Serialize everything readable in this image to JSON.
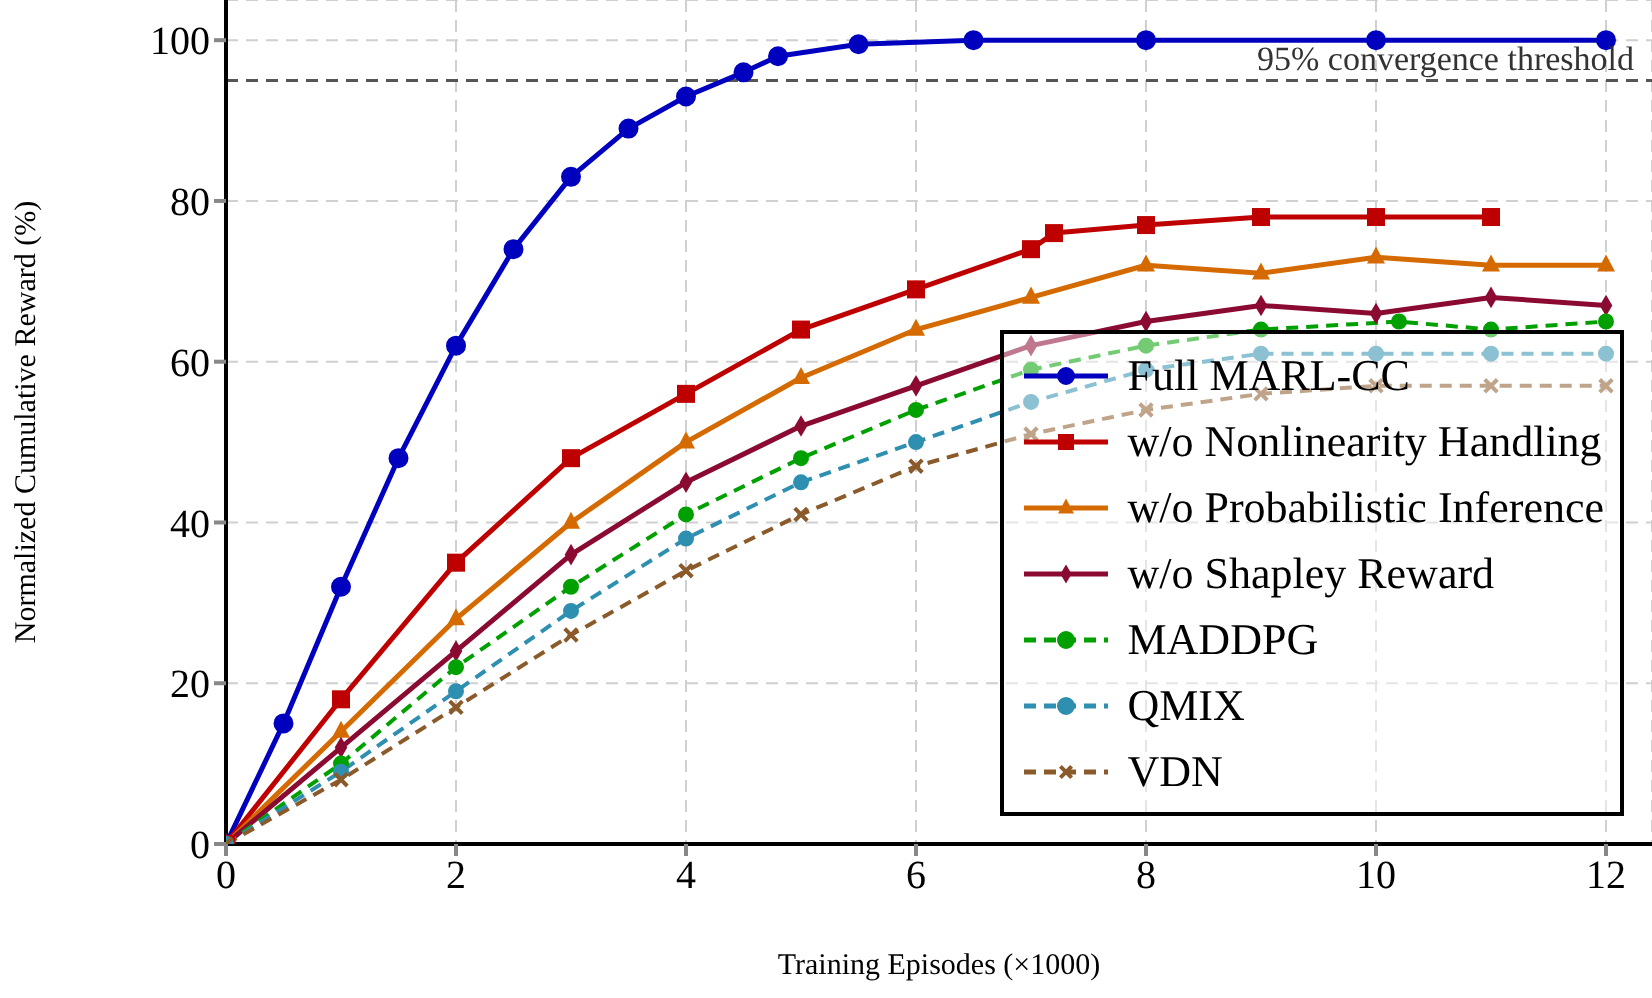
{
  "chart_data": {
    "type": "line",
    "xlabel": "Training Episodes (×1000)",
    "ylabel": "Normalized Cumulative Reward (%)",
    "xlim": [
      0,
      12.4
    ],
    "ylim": [
      0,
      105
    ],
    "xticks": [
      0,
      2,
      4,
      6,
      8,
      10,
      12
    ],
    "yticks": [
      0,
      20,
      40,
      60,
      80,
      100
    ],
    "grid": true,
    "legend": "bottom right",
    "ref_lines": [
      {
        "axis": "y",
        "value": 95,
        "label": "95% convergence threshold",
        "color": "#555555",
        "line_style": "dashed"
      }
    ],
    "series": [
      {
        "name": "Full MARL-CC",
        "color": "#0000bf",
        "marker": "circle",
        "line_style": "solid",
        "x": [
          0,
          0.5,
          1,
          1.5,
          2,
          2.5,
          3,
          3.5,
          4,
          4.5,
          4.8,
          5.5,
          6.5,
          8,
          10,
          12
        ],
        "values": [
          0,
          15,
          32,
          48,
          62,
          74,
          83,
          89,
          93,
          96,
          98,
          99.5,
          100,
          100,
          100,
          100
        ]
      },
      {
        "name": "w/o Nonlinearity Handling",
        "color": "#bf0000",
        "marker": "square",
        "line_style": "solid",
        "x": [
          0,
          1,
          2,
          3,
          4,
          5,
          6,
          7,
          7.2,
          8,
          9,
          10,
          11
        ],
        "values": [
          0,
          18,
          35,
          48,
          56,
          64,
          69,
          74,
          76,
          77,
          78,
          78,
          78
        ]
      },
      {
        "name": "w/o Probabilistic Inference",
        "color": "#d46a00",
        "marker": "triangle",
        "line_style": "solid",
        "x": [
          0,
          1,
          2,
          3,
          4,
          5,
          6,
          7,
          8,
          9,
          10,
          11,
          12
        ],
        "values": [
          0,
          14,
          28,
          40,
          50,
          58,
          64,
          68,
          72,
          71,
          73,
          72,
          72
        ]
      },
      {
        "name": "w/o Shapley Reward",
        "color": "#8b0a32",
        "marker": "diamond",
        "line_style": "solid",
        "x": [
          0,
          1,
          2,
          3,
          4,
          5,
          6,
          7,
          8,
          9,
          10,
          11,
          12
        ],
        "values": [
          0,
          12,
          24,
          36,
          45,
          52,
          57,
          62,
          65,
          67,
          66,
          68,
          67
        ]
      },
      {
        "name": "MADDPG",
        "color": "#00a000",
        "marker": "circle",
        "line_style": "dashed",
        "x": [
          0,
          1,
          2,
          3,
          4,
          5,
          6,
          7,
          8,
          9,
          10.2,
          11,
          12
        ],
        "values": [
          0,
          10,
          22,
          32,
          41,
          48,
          54,
          59,
          62,
          64,
          65,
          64,
          65
        ]
      },
      {
        "name": "QMIX",
        "color": "#2e8fb0",
        "marker": "circle",
        "line_style": "dashed",
        "x": [
          0,
          1,
          2,
          3,
          4,
          5,
          6,
          7,
          8,
          9,
          10,
          11,
          12
        ],
        "values": [
          0,
          9,
          19,
          29,
          38,
          45,
          50,
          55,
          59,
          61,
          61,
          61,
          61
        ]
      },
      {
        "name": "VDN",
        "color": "#8b5a2b",
        "marker": "cross",
        "line_style": "dashed",
        "x": [
          0,
          1,
          2,
          3,
          4,
          5,
          6,
          7,
          8,
          9,
          10,
          11,
          12
        ],
        "values": [
          0,
          8,
          17,
          26,
          34,
          41,
          47,
          51,
          54,
          56,
          57,
          57,
          57
        ]
      }
    ]
  }
}
